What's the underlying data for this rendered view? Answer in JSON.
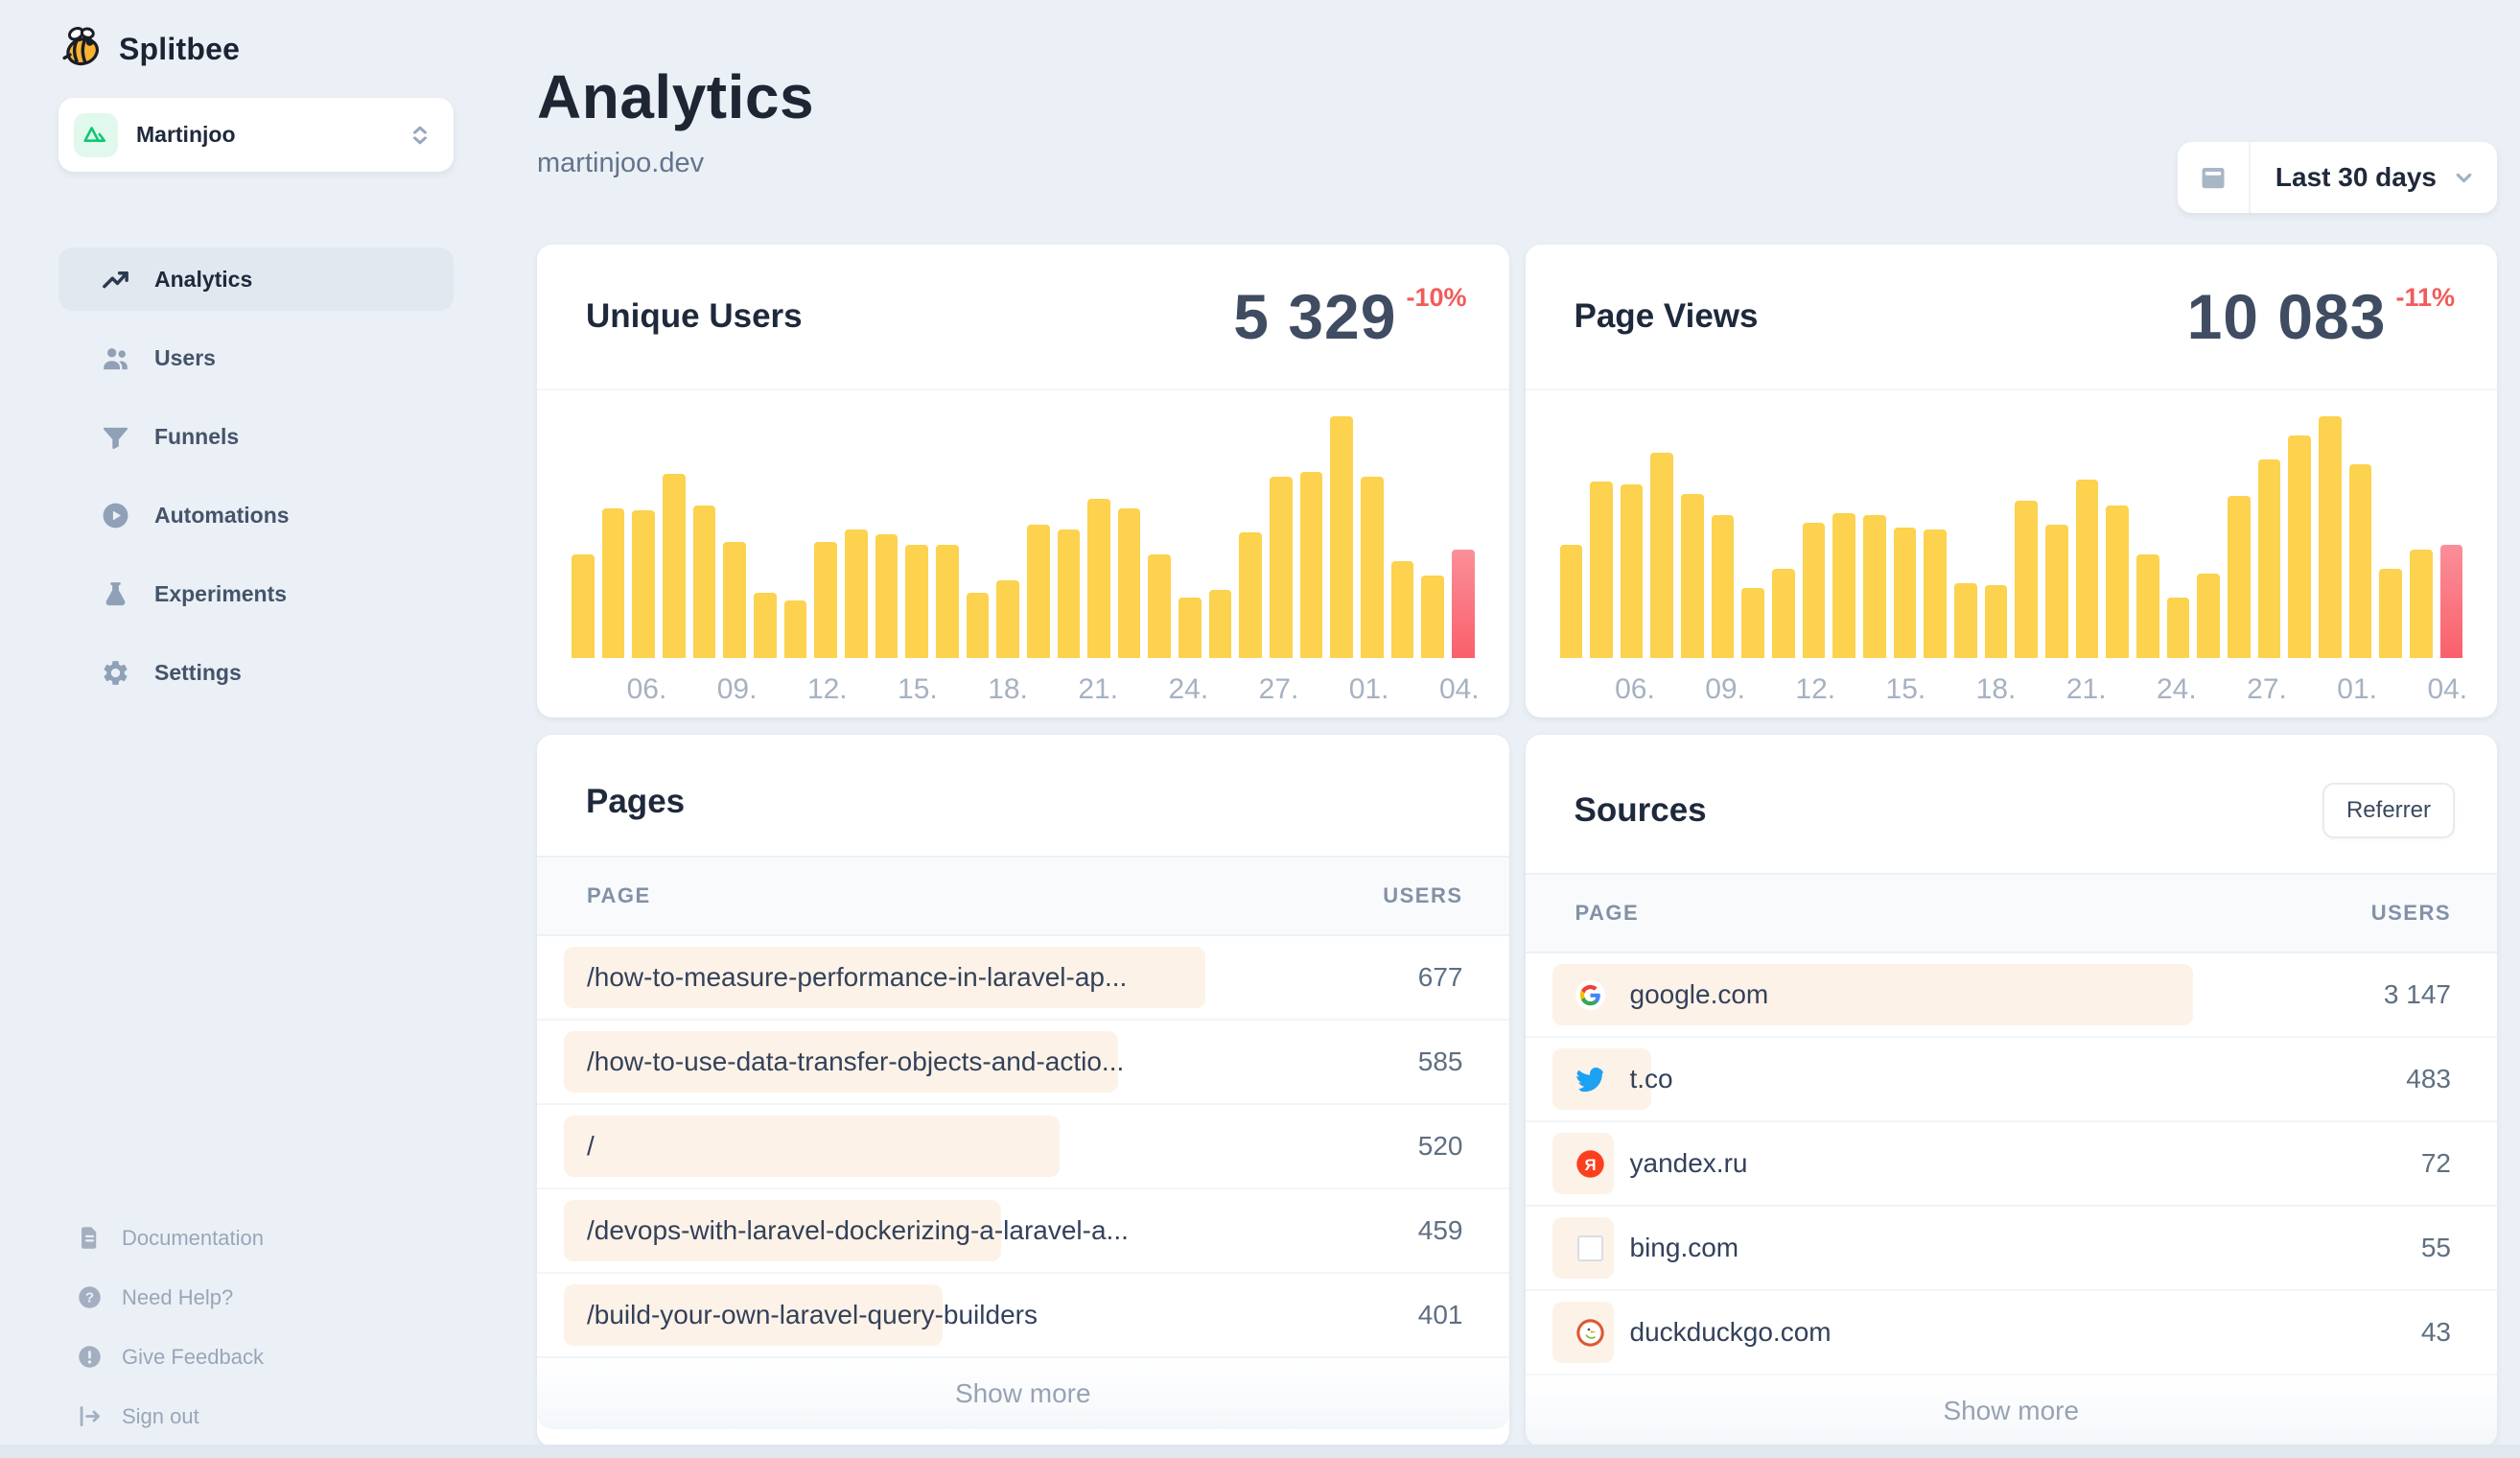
{
  "app": {
    "name": "Splitbee"
  },
  "workspace": {
    "name": "Martinjoo"
  },
  "sidebar": {
    "items": [
      {
        "label": "Analytics",
        "icon": "trending-up-icon",
        "active": true
      },
      {
        "label": "Users",
        "icon": "users-icon",
        "active": false
      },
      {
        "label": "Funnels",
        "icon": "funnel-icon",
        "active": false
      },
      {
        "label": "Automations",
        "icon": "play-circle-icon",
        "active": false
      },
      {
        "label": "Experiments",
        "icon": "flask-icon",
        "active": false
      },
      {
        "label": "Settings",
        "icon": "gear-icon",
        "active": false
      }
    ],
    "footer_items": [
      {
        "label": "Documentation",
        "icon": "document-icon"
      },
      {
        "label": "Need Help?",
        "icon": "help-circle-icon"
      },
      {
        "label": "Give Feedback",
        "icon": "alert-circle-icon"
      },
      {
        "label": "Sign out",
        "icon": "sign-out-icon"
      }
    ]
  },
  "header": {
    "title": "Analytics",
    "subtitle": "martinjoo.dev"
  },
  "date_picker": {
    "label": "Last 30 days"
  },
  "colors": {
    "page_bg": "#EBF0F6",
    "card_bg": "#FFFFFF",
    "accent_yellow": "#FCD24E",
    "accent_red": "#F15B5B",
    "red_bar_top": "#FB8F99",
    "red_bar_bottom": "#F9606B",
    "chip_orange": "#FDF2E7",
    "active_nav_bg": "#E2E8F0",
    "muted_text": "#94A3B8",
    "workspace_icon_green": "#10C776"
  },
  "chart_data": [
    {
      "type": "bar",
      "title": "Unique Users",
      "total": "5 329",
      "change_pct": "-10%",
      "x_tick_labels": [
        "06.",
        "09.",
        "12.",
        "15.",
        "18.",
        "21.",
        "24.",
        "27.",
        "01.",
        "04."
      ],
      "values": [
        43,
        62,
        61,
        76,
        63,
        48,
        27,
        24,
        48,
        53,
        51,
        47,
        47,
        27,
        32,
        55,
        53,
        66,
        62,
        43,
        25,
        28,
        52,
        75,
        77,
        100,
        75,
        40,
        34,
        45
      ],
      "values_unit": "percent_of_max_bar",
      "ylim": [
        0,
        100
      ],
      "grid": false,
      "last_bar_highlighted": true
    },
    {
      "type": "bar",
      "title": "Page Views",
      "total": "10 083",
      "change_pct": "-11%",
      "x_tick_labels": [
        "06.",
        "09.",
        "12.",
        "15.",
        "18.",
        "21.",
        "24.",
        "27.",
        "01.",
        "04."
      ],
      "values": [
        47,
        73,
        72,
        85,
        68,
        59,
        29,
        37,
        56,
        60,
        59,
        54,
        53,
        31,
        30,
        65,
        55,
        74,
        63,
        43,
        25,
        35,
        67,
        82,
        92,
        100,
        80,
        37,
        45,
        47
      ],
      "values_unit": "percent_of_max_bar",
      "ylim": [
        0,
        100
      ],
      "grid": false,
      "last_bar_highlighted": true
    }
  ],
  "pages_card": {
    "title": "Pages",
    "columns": [
      "PAGE",
      "USERS"
    ],
    "rows": [
      {
        "label": "/how-to-measure-performance-in-laravel-ap...",
        "users": "677",
        "bar_pct": 66
      },
      {
        "label": "/how-to-use-data-transfer-objects-and-actio...",
        "users": "585",
        "bar_pct": 57
      },
      {
        "label": "/",
        "users": "520",
        "bar_pct": 51
      },
      {
        "label": "/devops-with-laravel-dockerizing-a-laravel-a...",
        "users": "459",
        "bar_pct": 45
      },
      {
        "label": "/build-your-own-laravel-query-builders",
        "users": "401",
        "bar_pct": 39
      }
    ],
    "show_more": "Show more"
  },
  "sources_card": {
    "title": "Sources",
    "filter_label": "Referrer",
    "columns": [
      "PAGE",
      "USERS"
    ],
    "rows": [
      {
        "label": "google.com",
        "users": "3 147",
        "icon": "google-favicon",
        "bar_pct": 66
      },
      {
        "label": "t.co",
        "users": "483",
        "icon": "twitter-favicon",
        "bar_pct": 10.2
      },
      {
        "label": "yandex.ru",
        "users": "72",
        "icon": "yandex-favicon",
        "bar_pct": 1.6
      },
      {
        "label": "bing.com",
        "users": "55",
        "icon": "bing-favicon",
        "bar_pct": 1.2
      },
      {
        "label": "duckduckgo.com",
        "users": "43",
        "icon": "duckduckgo-favicon",
        "bar_pct": 1.0
      }
    ],
    "show_more": "Show more"
  }
}
